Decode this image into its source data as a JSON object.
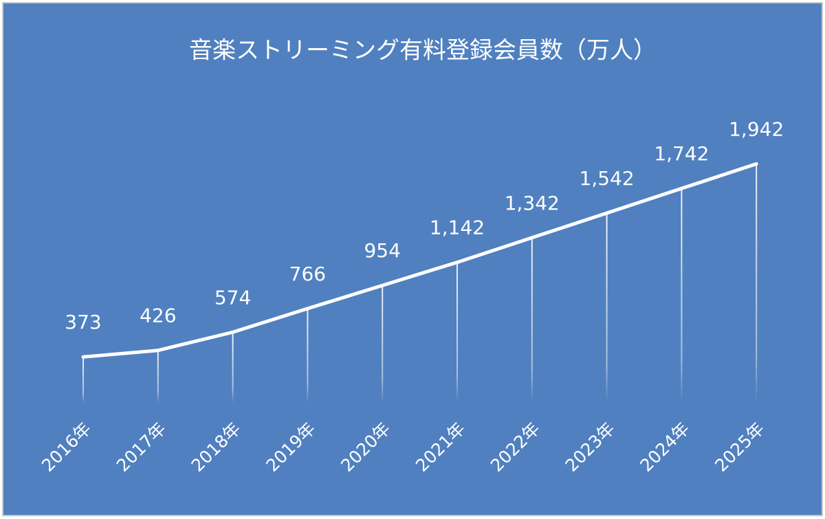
{
  "chart_data": {
    "type": "line",
    "title": "音楽ストリーミング有料登録会員数（万人）",
    "categories": [
      "2016年",
      "2017年",
      "2018年",
      "2019年",
      "2020年",
      "2021年",
      "2022年",
      "2023年",
      "2024年",
      "2025年"
    ],
    "values": [
      373,
      426,
      574,
      766,
      954,
      1142,
      1342,
      1542,
      1742,
      1942
    ],
    "value_labels": [
      "373",
      "426",
      "574",
      "766",
      "954",
      "1,142",
      "1,342",
      "1,542",
      "1,742",
      "1,942"
    ],
    "color": "#ffffff"
  }
}
